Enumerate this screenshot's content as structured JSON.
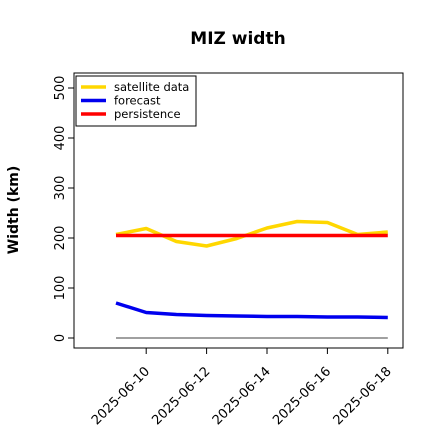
{
  "chart_data": {
    "type": "line",
    "title": "MIZ width",
    "xlabel": "",
    "ylabel": "Width (km)",
    "x_ticks": [
      "2025-06-10",
      "2025-06-12",
      "2025-06-14",
      "2025-06-16",
      "2025-06-18"
    ],
    "highlight_tick": "2025-06-10",
    "highlight_color": "#228B22",
    "x": [
      "2025-06-09",
      "2025-06-10",
      "2025-06-11",
      "2025-06-12",
      "2025-06-13",
      "2025-06-14",
      "2025-06-15",
      "2025-06-16",
      "2025-06-17",
      "2025-06-18"
    ],
    "xlim": [
      "2025-06-08",
      "2025-06-18"
    ],
    "ylim": [
      -8,
      520
    ],
    "y_ticks": [
      0,
      100,
      200,
      300,
      400,
      500
    ],
    "grid": false,
    "legend_position": "top-left",
    "reference_line": {
      "y": 0,
      "color": "#808080"
    },
    "series": [
      {
        "name": "satellite data",
        "color": "#FFD700",
        "values": [
          207,
          219,
          193,
          184,
          199,
          220,
          233,
          231,
          207,
          212
        ]
      },
      {
        "name": "forecast",
        "color": "#0000EE",
        "values": [
          70,
          51,
          47,
          45,
          44,
          43,
          43,
          42,
          42,
          41
        ]
      },
      {
        "name": "persistence",
        "color": "#FF0000",
        "values": [
          205,
          205,
          205,
          205,
          205,
          205,
          205,
          205,
          205,
          205
        ]
      }
    ]
  }
}
